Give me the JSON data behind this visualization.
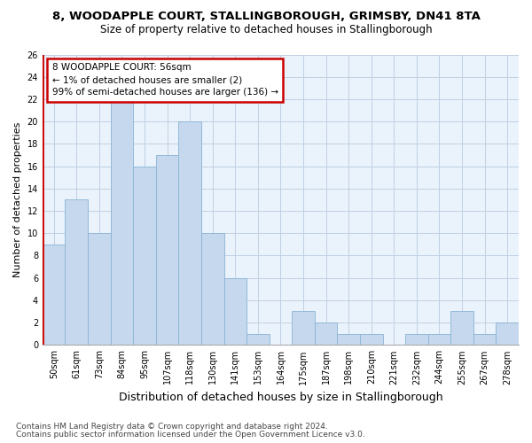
{
  "title1": "8, WOODAPPLE COURT, STALLINGBOROUGH, GRIMSBY, DN41 8TA",
  "title2": "Size of property relative to detached houses in Stallingborough",
  "xlabel": "Distribution of detached houses by size in Stallingborough",
  "ylabel": "Number of detached properties",
  "footnote1": "Contains HM Land Registry data © Crown copyright and database right 2024.",
  "footnote2": "Contains public sector information licensed under the Open Government Licence v3.0.",
  "annotation_line1": "8 WOODAPPLE COURT: 56sqm",
  "annotation_line2": "← 1% of detached houses are smaller (2)",
  "annotation_line3": "99% of semi-detached houses are larger (136) →",
  "bar_color": "#c5d8ed",
  "bar_edge_color": "#8ab4d4",
  "ref_line_color": "#cc0000",
  "annotation_box_color": "#cc0000",
  "categories": [
    "50sqm",
    "61sqm",
    "73sqm",
    "84sqm",
    "95sqm",
    "107sqm",
    "118sqm",
    "130sqm",
    "141sqm",
    "153sqm",
    "164sqm",
    "175sqm",
    "187sqm",
    "198sqm",
    "210sqm",
    "221sqm",
    "232sqm",
    "244sqm",
    "255sqm",
    "267sqm",
    "278sqm"
  ],
  "values": [
    9,
    13,
    10,
    22,
    16,
    17,
    20,
    10,
    6,
    1,
    0,
    3,
    2,
    1,
    1,
    0,
    1,
    1,
    3,
    1,
    2
  ],
  "ylim": [
    0,
    26
  ],
  "yticks": [
    0,
    2,
    4,
    6,
    8,
    10,
    12,
    14,
    16,
    18,
    20,
    22,
    24,
    26
  ],
  "grid_color": "#c0d0e4",
  "background_color": "#eaf2fb",
  "title1_fontsize": 9.5,
  "title2_fontsize": 8.5,
  "ylabel_fontsize": 8,
  "xlabel_fontsize": 9,
  "tick_fontsize": 7,
  "annotation_fontsize": 7.5,
  "footnote_fontsize": 6.5
}
